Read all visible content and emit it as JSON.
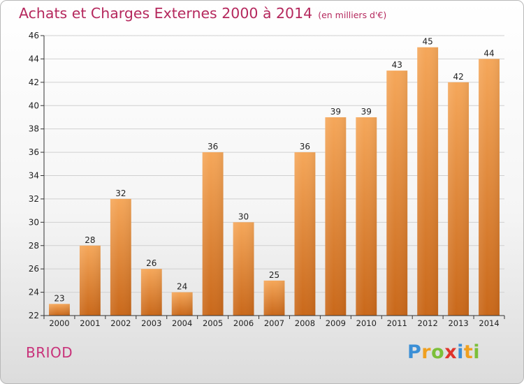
{
  "title": "Achats et Charges Externes 2000 à 2014",
  "subtitle": "(en milliers d'€)",
  "place_label": "BRIOD",
  "logo": {
    "letters": [
      {
        "char": "P",
        "color": "#3b8fd6"
      },
      {
        "char": "r",
        "color": "#f0a020"
      },
      {
        "char": "o",
        "color": "#7cbf3a"
      },
      {
        "char": "x",
        "color": "#e0332b"
      },
      {
        "char": "i",
        "color": "#3b8fd6"
      },
      {
        "char": "t",
        "color": "#f0a020"
      },
      {
        "char": "i",
        "color": "#7cbf3a"
      }
    ]
  },
  "colors": {
    "bar_top": "#f5a75a",
    "bar_bottom": "#c9681a",
    "title": "#b5285d",
    "grid": "#d0d0d0",
    "axis": "#333333"
  },
  "chart_data": {
    "type": "bar",
    "title": "Achats et Charges Externes 2000 à 2014",
    "subtitle": "(en milliers d'€)",
    "categories": [
      "2000",
      "2001",
      "2002",
      "2003",
      "2004",
      "2005",
      "2006",
      "2007",
      "2008",
      "2009",
      "2010",
      "2011",
      "2012",
      "2013",
      "2014"
    ],
    "values": [
      23,
      28,
      32,
      26,
      24,
      36,
      30,
      25,
      36,
      39,
      39,
      43,
      45,
      42,
      44
    ],
    "ylim": [
      22,
      46
    ],
    "yticks": [
      22,
      24,
      26,
      28,
      30,
      32,
      34,
      36,
      38,
      40,
      42,
      44,
      46
    ],
    "grid": true,
    "data_labels": true
  }
}
